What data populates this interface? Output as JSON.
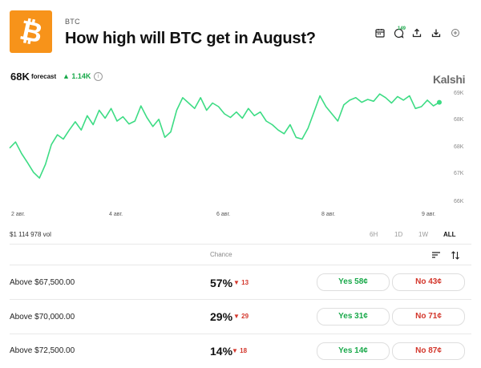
{
  "header": {
    "ticker": "BTC",
    "title": "How high will BTC get in August?",
    "logo_symbol": "₿",
    "badge": "149"
  },
  "icons": [
    "calendar-icon",
    "comments-icon",
    "share-icon",
    "download-icon",
    "add-icon"
  ],
  "forecast": {
    "value": "68K",
    "label": "forecast",
    "change": "▲ 1.14K"
  },
  "brand": "Kalshi",
  "colors": {
    "accent": "#19a94a",
    "down": "#d3362b",
    "logo_bg": "#f7931a",
    "line": "#3ddc84"
  },
  "chart_data": {
    "type": "line",
    "y_ticks": [
      "69K",
      "68K",
      "68K",
      "67K",
      "66K"
    ],
    "x_ticks": [
      "2 авг.",
      "4 авг.",
      "6 авг.",
      "8 авг.",
      "9 авг."
    ],
    "series": [
      {
        "values": [
          67.45,
          67.62,
          67.3,
          67.05,
          66.78,
          66.62,
          67.0,
          67.55,
          67.82,
          67.7,
          67.95,
          68.18,
          67.95,
          68.35,
          68.1,
          68.5,
          68.28,
          68.55,
          68.2,
          68.32,
          68.12,
          68.2,
          68.62,
          68.3,
          68.05,
          68.25,
          67.75,
          67.9,
          68.5,
          68.85,
          68.7,
          68.55,
          68.85,
          68.5,
          68.7,
          68.6,
          68.4,
          68.3,
          68.45,
          68.28,
          68.55,
          68.35,
          68.45,
          68.2,
          68.1,
          67.95,
          67.85,
          68.1,
          67.75,
          67.7,
          68.0,
          68.45,
          68.9,
          68.6,
          68.4,
          68.2,
          68.65,
          68.78,
          68.85,
          68.72,
          68.8,
          68.75,
          68.95,
          68.85,
          68.7,
          68.88,
          68.78,
          68.9,
          68.55,
          68.6,
          68.78,
          68.62,
          68.72
        ]
      }
    ],
    "grid": false
  },
  "volume": "$1 114 978 vol",
  "ranges": [
    "6H",
    "1D",
    "1W",
    "ALL"
  ],
  "active_range": "ALL",
  "table": {
    "chance_header": "Chance",
    "rows": [
      {
        "label": "Above $67,500.00",
        "chance": "57%",
        "delta": "▼ 13",
        "yes": "Yes 58¢",
        "no": "No 43¢"
      },
      {
        "label": "Above $70,000.00",
        "chance": "29%",
        "delta": "▼ 29",
        "yes": "Yes 31¢",
        "no": "No 71¢"
      },
      {
        "label": "Above $72,500.00",
        "chance": "14%",
        "delta": "▼ 18",
        "yes": "Yes 14¢",
        "no": "No 87¢"
      }
    ]
  }
}
